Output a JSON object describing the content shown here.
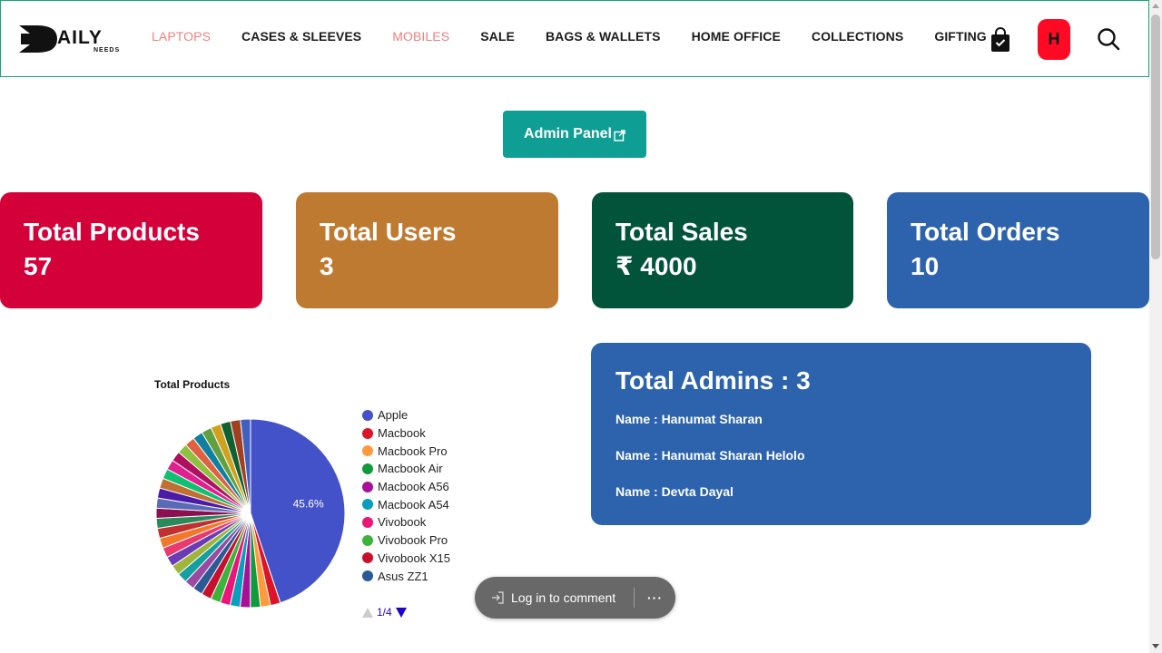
{
  "brand": {
    "logo_main": "AILY",
    "logo_sub": "NEEDS"
  },
  "nav": {
    "items": [
      {
        "label": "LAPTOPS",
        "style": "accent"
      },
      {
        "label": "CASES & SLEEVES",
        "style": "normal"
      },
      {
        "label": "MOBILES",
        "style": "accent"
      },
      {
        "label": "SALE",
        "style": "normal"
      },
      {
        "label": "BAGS & WALLETS",
        "style": "normal"
      },
      {
        "label": "HOME OFFICE",
        "style": "normal"
      },
      {
        "label": "COLLECTIONS",
        "style": "normal"
      },
      {
        "label": "GIFTING",
        "style": "normal"
      }
    ],
    "avatar_initial": "H",
    "accent_color": "#f08080"
  },
  "admin_button": {
    "label": "Admin Panel"
  },
  "stats": [
    {
      "label": "Total Products",
      "value": "57",
      "color": "#d4003a"
    },
    {
      "label": "Total Users",
      "value": "3",
      "color": "#bf7a32"
    },
    {
      "label": "Total Sales",
      "value": "₹ 4000",
      "color": "#01533a"
    },
    {
      "label": "Total Orders",
      "value": "10",
      "color": "#2c63ac"
    }
  ],
  "chart_data": {
    "type": "pie",
    "title": "Total Products",
    "slices": [
      {
        "name": "Apple",
        "value": 45.6,
        "label": "45.6%",
        "color": "#4352c8"
      },
      {
        "name": "Macbook",
        "value": 1.75,
        "color": "#dc1428"
      },
      {
        "name": "Macbook Pro",
        "value": 1.75,
        "color": "#ff9a3c"
      },
      {
        "name": "Macbook Air",
        "value": 1.75,
        "color": "#109a3c"
      },
      {
        "name": "Macbook A56",
        "value": 1.75,
        "color": "#a8109a"
      },
      {
        "name": "Macbook A54",
        "value": 1.75,
        "color": "#0a9dbd"
      },
      {
        "name": "Vivobook",
        "value": 1.75,
        "color": "#ec1478"
      },
      {
        "name": "Vivobook Pro",
        "value": 1.75,
        "color": "#3cb43c"
      },
      {
        "name": "Vivobook X15",
        "value": 1.75,
        "color": "#c8102e"
      },
      {
        "name": "Asus ZZ1",
        "value": 1.75,
        "color": "#2a5a96"
      },
      {
        "name": "",
        "value": 1.75,
        "color": "#9a4aa0"
      },
      {
        "name": "",
        "value": 1.75,
        "color": "#14a0a0"
      },
      {
        "name": "",
        "value": 1.75,
        "color": "#a0b43c"
      },
      {
        "name": "",
        "value": 1.75,
        "color": "#6a3cb4"
      },
      {
        "name": "",
        "value": 1.75,
        "color": "#e83a6e"
      },
      {
        "name": "",
        "value": 1.75,
        "color": "#f07828"
      },
      {
        "name": "",
        "value": 1.75,
        "color": "#c03030"
      },
      {
        "name": "",
        "value": 1.75,
        "color": "#2a8a5a"
      },
      {
        "name": "",
        "value": 1.75,
        "color": "#8a1050"
      },
      {
        "name": "",
        "value": 1.75,
        "color": "#5a6ab4"
      },
      {
        "name": "",
        "value": 1.75,
        "color": "#4a1aa8"
      },
      {
        "name": "",
        "value": 1.75,
        "color": "#c07030"
      },
      {
        "name": "",
        "value": 1.75,
        "color": "#10c070"
      },
      {
        "name": "",
        "value": 1.75,
        "color": "#e02090"
      },
      {
        "name": "",
        "value": 1.75,
        "color": "#b01060"
      },
      {
        "name": "",
        "value": 1.75,
        "color": "#90c040"
      },
      {
        "name": "",
        "value": 1.75,
        "color": "#e06040"
      },
      {
        "name": "",
        "value": 1.75,
        "color": "#1080a0"
      },
      {
        "name": "",
        "value": 1.75,
        "color": "#60a040"
      },
      {
        "name": "",
        "value": 1.75,
        "color": "#d0a020"
      },
      {
        "name": "",
        "value": 1.75,
        "color": "#106030"
      },
      {
        "name": "",
        "value": 1.75,
        "color": "#a04020"
      },
      {
        "name": "",
        "value": 1.75,
        "color": "#4060c0"
      }
    ]
  },
  "legend_pager": {
    "label": "1/4"
  },
  "admins": {
    "title": "Total Admins : 3",
    "names": [
      "Name : Hanumat Sharan",
      "Name : Hanumat Sharan Helolo",
      "Name : Devta Dayal"
    ]
  },
  "comment": {
    "login_label": "Log in to comment",
    "more_label": "···"
  }
}
